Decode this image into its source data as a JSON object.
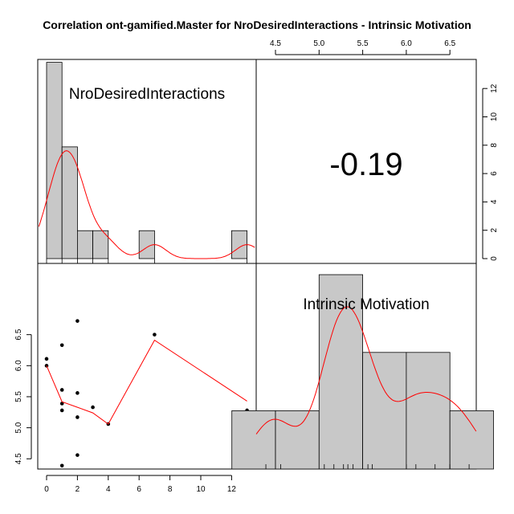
{
  "chart_data": {
    "type": "scatter",
    "title": "Correlation ont-gamified.Master for NroDesiredInteractions - Intrinsic Motivation",
    "variables": [
      "NroDesiredInteractions",
      "Intrinsic Motivation"
    ],
    "correlation": "-0.19",
    "x_ticks": [
      "0",
      "2",
      "4",
      "6",
      "8",
      "10",
      "12"
    ],
    "y_ticks": [
      "4.5",
      "5.0",
      "5.5",
      "6.0",
      "6.5"
    ],
    "hist_count_ticks": [
      "0",
      "2",
      "4",
      "6",
      "8",
      "10",
      "12"
    ],
    "top_axis_ticks": [
      "4.5",
      "5.0",
      "5.5",
      "6.0",
      "6.5"
    ],
    "scatter_points": [
      {
        "x": 0,
        "y": 6.11
      },
      {
        "x": 0,
        "y": 6.0
      },
      {
        "x": 1,
        "y": 6.33
      },
      {
        "x": 1,
        "y": 5.61
      },
      {
        "x": 1,
        "y": 5.39
      },
      {
        "x": 1,
        "y": 5.28
      },
      {
        "x": 1,
        "y": 4.39
      },
      {
        "x": 2,
        "y": 6.72
      },
      {
        "x": 2,
        "y": 5.56
      },
      {
        "x": 2,
        "y": 5.17
      },
      {
        "x": 2,
        "y": 4.56
      },
      {
        "x": 3,
        "y": 5.33
      },
      {
        "x": 4,
        "y": 5.06
      },
      {
        "x": 7,
        "y": 6.5
      },
      {
        "x": 13,
        "y": 5.28
      }
    ],
    "smooth_line": [
      {
        "x": 0,
        "y": 6.0
      },
      {
        "x": 1,
        "y": 5.42
      },
      {
        "x": 2,
        "y": 5.33
      },
      {
        "x": 3,
        "y": 5.24
      },
      {
        "x": 4,
        "y": 5.06
      },
      {
        "x": 7,
        "y": 6.41
      },
      {
        "x": 13,
        "y": 5.43
      }
    ],
    "hist_x": [
      {
        "from": 0,
        "to": 1,
        "density_height": 13
      },
      {
        "from": 1,
        "to": 2,
        "density_height": 7.4
      },
      {
        "from": 2,
        "to": 3,
        "density_height": 1.85
      },
      {
        "from": 3,
        "to": 4,
        "density_height": 1.85
      },
      {
        "from": 6,
        "to": 7,
        "density_height": 1.85
      },
      {
        "from": 12,
        "to": 13,
        "density_height": 1.85
      }
    ],
    "hist_y": [
      {
        "from": 4.0,
        "to": 4.5,
        "height": 0.3
      },
      {
        "from": 4.5,
        "to": 5.0,
        "height": 0.3
      },
      {
        "from": 5.0,
        "to": 5.5,
        "height": 1.0
      },
      {
        "from": 5.5,
        "to": 6.0,
        "height": 0.6
      },
      {
        "from": 6.0,
        "to": 6.5,
        "height": 0.6
      },
      {
        "from": 6.5,
        "to": 7.0,
        "height": 0.3
      }
    ],
    "rug_y": [
      4.39,
      4.56,
      5.06,
      5.17,
      5.28,
      5.33,
      5.39,
      5.56,
      5.61,
      6.0,
      6.11,
      6.33,
      6.5,
      6.72
    ],
    "colors": {
      "bar": "#c8c8c8",
      "line": "#ff0000",
      "point": "#000000"
    }
  }
}
